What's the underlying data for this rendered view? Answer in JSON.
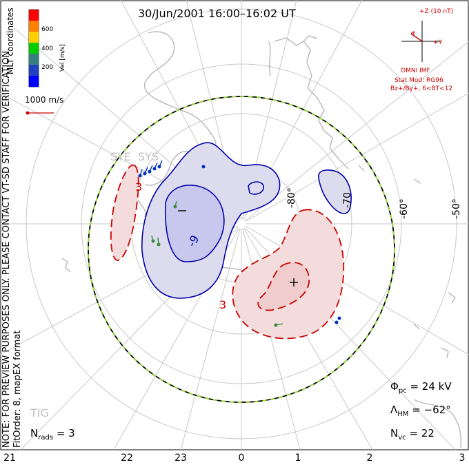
{
  "title": "30/Jun/2001 16:00–16:02 UT",
  "colorbar": {
    "label": "Vel [m/s]",
    "ticks": [
      "600",
      "400",
      "200"
    ],
    "colors": [
      "#ff0000",
      "#ff7f00",
      "#ffd000",
      "#00cc00",
      "#3a7f7f",
      "#2040c0",
      "#0000ff"
    ]
  },
  "coordinates_label": "MLT coordinates",
  "watermark": "NOTE: FOR PREVIEW PURPOSES ONLY. PLEASE CONTACT VT-SD STAFF FOR VERIFICATION.",
  "fit_order": "FitOrder: 8, mapEX format",
  "velocity_scale": "1000 m/s",
  "imf": {
    "z_label": "+Z (10 nT)",
    "y_label": "+Y",
    "source": "OMNI IMF",
    "model": "Stat Mod: RG96",
    "condition": "Bz+/By+, 6<BT<12"
  },
  "latitude_labels": [
    "-80°",
    "-70",
    "-60°",
    "-50°"
  ],
  "mlt_labels": [
    "21",
    "22",
    "23",
    "0",
    "1",
    "2",
    "3"
  ],
  "contour_labels": [
    "-",
    "+",
    "3",
    "3",
    "-9"
  ],
  "stations": [
    "SYE",
    "SYS",
    "TIG"
  ],
  "stats": {
    "phi_symbol": "Φ",
    "phi_sub": "pc",
    "phi_value": "= 24 kV",
    "lambda_symbol": "Λ",
    "lambda_sub": "HM",
    "lambda_value": "= −62°",
    "nvc_symbol": "N",
    "nvc_sub": "vc",
    "nvc_value": "= 22",
    "nrads_symbol": "N",
    "nrads_sub": "rads",
    "nrads_value": "= 3"
  }
}
